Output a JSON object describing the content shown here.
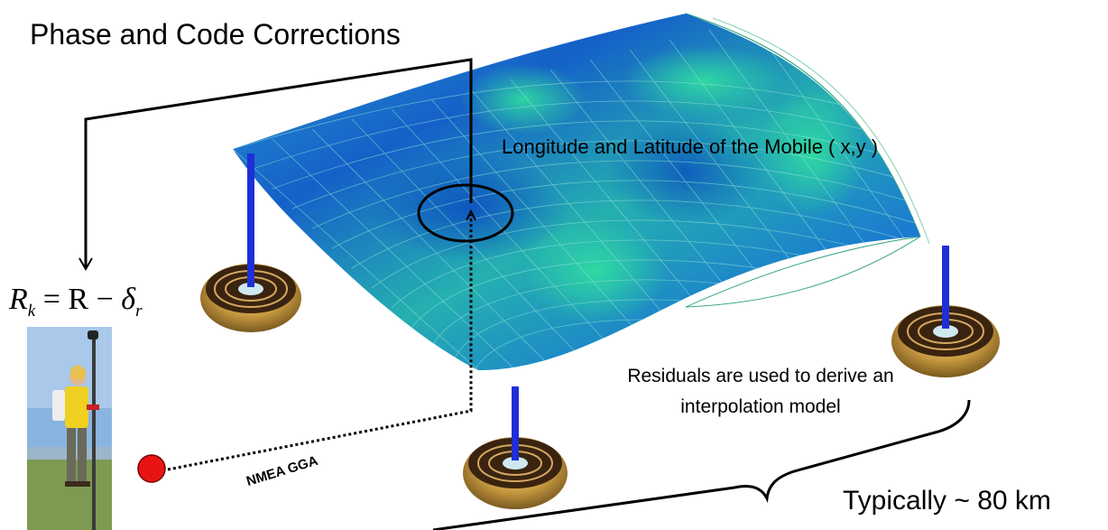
{
  "labels": {
    "title": "Phase and Code Corrections",
    "lonlat": "Longitude and Latitude of the Mobile ( x,y )",
    "residuals": "Residuals are used to derive an interpolation model",
    "nmea": "NMEA GGA",
    "typical": "Typically ~ 80 km"
  },
  "formula": {
    "lhs": "R",
    "lhs_sub": "k",
    "op": " = R − ",
    "rhs": "δ",
    "rhs_sub": "r"
  },
  "colors": {
    "surface_dark": "#1560c8",
    "surface_light": "#2fd494",
    "mast": "#1f2fd8",
    "mobile_dot": "#e81414",
    "antenna_gold": "#c89a40"
  }
}
